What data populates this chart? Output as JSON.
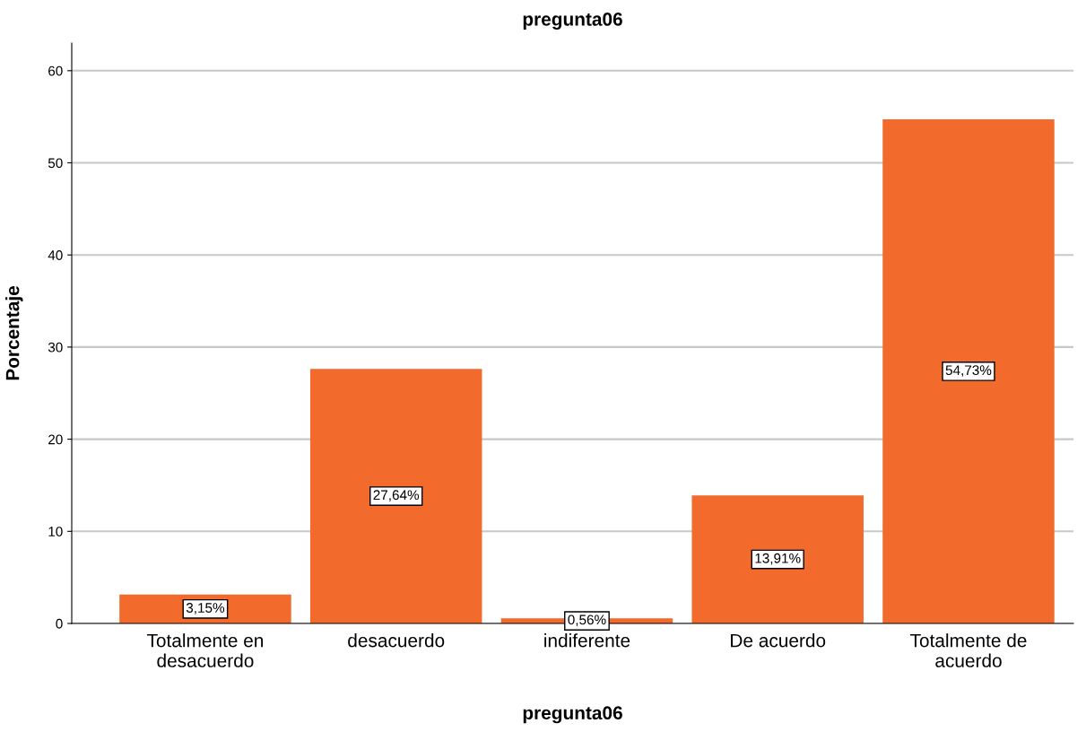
{
  "chart_data": {
    "type": "bar",
    "title": "pregunta06",
    "xlabel": "pregunta06",
    "ylabel": "Porcentaje",
    "categories": [
      "Totalmente en\ndesacuerdo",
      "desacuerdo",
      "indiferente",
      "De acuerdo",
      "Totalmente de\nacuerdo"
    ],
    "values": [
      3.15,
      27.64,
      0.56,
      13.91,
      54.73
    ],
    "value_labels": [
      "3,15%",
      "27,64%",
      "0,56%",
      "13,91%",
      "54,73%"
    ],
    "color": "#f26b2c",
    "ylim": [
      0,
      63
    ],
    "yticks": [
      0,
      10,
      20,
      30,
      40,
      50,
      60
    ],
    "grid": "y"
  }
}
